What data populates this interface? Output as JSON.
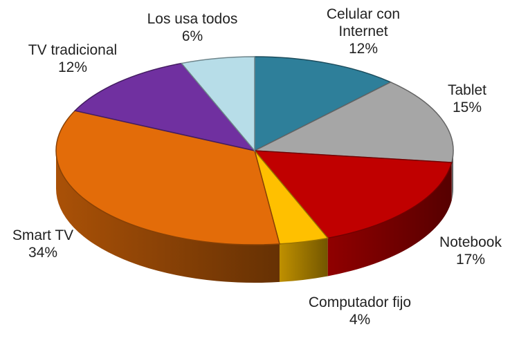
{
  "chart_data": {
    "type": "pie",
    "categories": [
      "Celular con Internet",
      "Tablet",
      "Notebook",
      "Computador fijo",
      "Smart TV",
      "TV tradicional",
      "Los usa todos"
    ],
    "values": [
      12,
      15,
      17,
      4,
      34,
      12,
      6
    ],
    "value_labels": [
      "12%",
      "15%",
      "17%",
      "4%",
      "34%",
      "12%",
      "6%"
    ],
    "colors": [
      "#2e7f9a",
      "#a6a6a6",
      "#c00000",
      "#ffc000",
      "#e36c09",
      "#7030a0",
      "#b7dde8"
    ]
  }
}
